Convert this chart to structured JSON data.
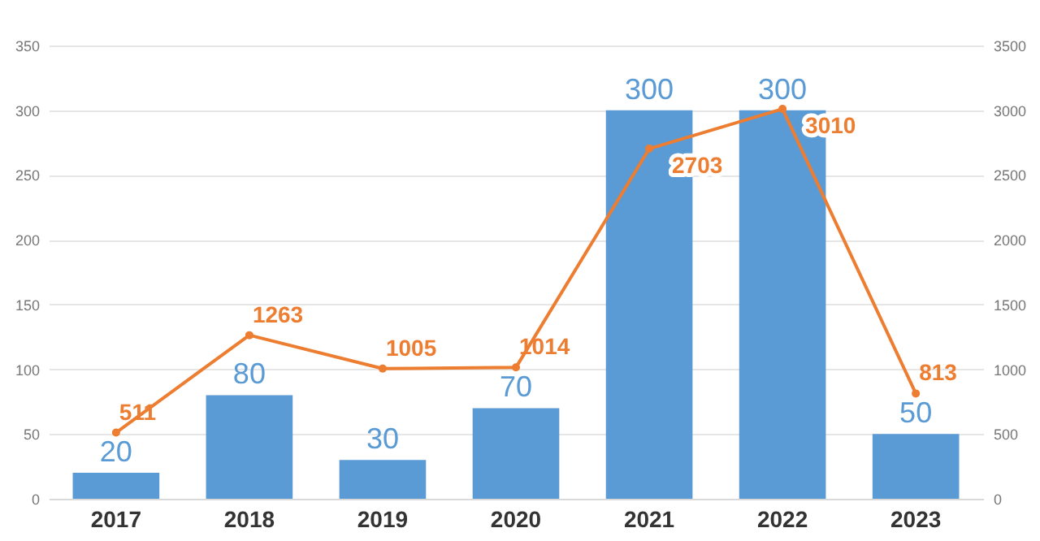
{
  "chart_data": {
    "type": "bar",
    "categories": [
      "2017",
      "2018",
      "2019",
      "2020",
      "2021",
      "2022",
      "2023"
    ],
    "series": [
      {
        "color": "#5b9bd5",
        "values": [
          20,
          80,
          30,
          70,
          300,
          300,
          50
        ]
      },
      {
        "type": "line",
        "axis": "y2",
        "color": "#ed7d31",
        "marker": "circle",
        "line_style": "solid",
        "values": [
          511,
          1263,
          1005,
          1014,
          2703,
          3010,
          813
        ]
      }
    ],
    "ylim": [
      0,
      350
    ],
    "yticks": [
      0,
      50,
      100,
      150,
      200,
      250,
      300,
      350
    ],
    "y2lim": [
      0,
      3500
    ],
    "y2ticks": [
      0,
      500,
      1000,
      1500,
      2000,
      2500,
      3000,
      3500
    ],
    "grid": "y",
    "data_labels": true
  }
}
